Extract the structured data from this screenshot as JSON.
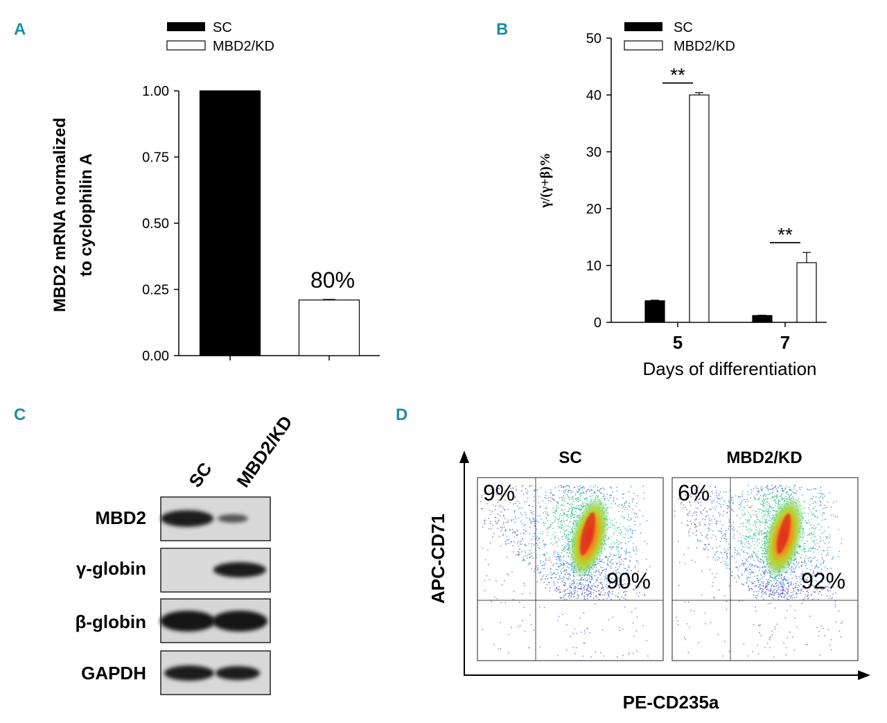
{
  "colors": {
    "panel_letter": "#1a8ea3",
    "sc_bar": "#000000",
    "kd_bar": "#ffffff"
  },
  "chart_data": [
    {
      "panel": "A",
      "type": "bar",
      "ylabel": "MBD2 mRNA normalized to cyclophilin A",
      "ylabel_lines": [
        "MBD2 mRNA normalized",
        "to cyclophilin A"
      ],
      "legend": [
        "SC",
        "MBD2/KD"
      ],
      "categories": [
        "SC",
        "MBD2/KD"
      ],
      "values": [
        1.0,
        0.21
      ],
      "error": [
        0,
        0.002
      ],
      "ylim": [
        0,
        1.0
      ],
      "yticks": [
        "0.00",
        "0.25",
        "0.50",
        "0.75",
        "1.00"
      ],
      "annotation": "80%"
    },
    {
      "panel": "B",
      "type": "bar",
      "xlabel": "Days of differentiation",
      "ylabel": "γ/(γ+β)%",
      "categories": [
        "5",
        "7"
      ],
      "series": [
        {
          "name": "SC",
          "values": [
            3.8,
            1.2
          ],
          "error": [
            0.1,
            0.05
          ]
        },
        {
          "name": "MBD2/KD",
          "values": [
            40.0,
            10.5
          ],
          "error": [
            0.4,
            1.8
          ]
        }
      ],
      "ylim": [
        0,
        50
      ],
      "yticks": [
        "0",
        "10",
        "20",
        "30",
        "40",
        "50"
      ],
      "significance": [
        "**",
        "**"
      ]
    },
    {
      "panel": "C",
      "type": "western-blot",
      "lanes": [
        "SC",
        "MBD2/KD"
      ],
      "rows": [
        "MBD2",
        "γ-globin",
        "β-globin",
        "GAPDH"
      ]
    },
    {
      "panel": "D",
      "type": "scatter",
      "xlabel": "PE-CD235a",
      "ylabel": "APC-CD71",
      "plots": [
        {
          "title": "SC",
          "upper_left": "9%",
          "upper_right": "90%"
        },
        {
          "title": "MBD2/KD",
          "upper_left": "6%",
          "upper_right": "92%"
        }
      ]
    }
  ]
}
